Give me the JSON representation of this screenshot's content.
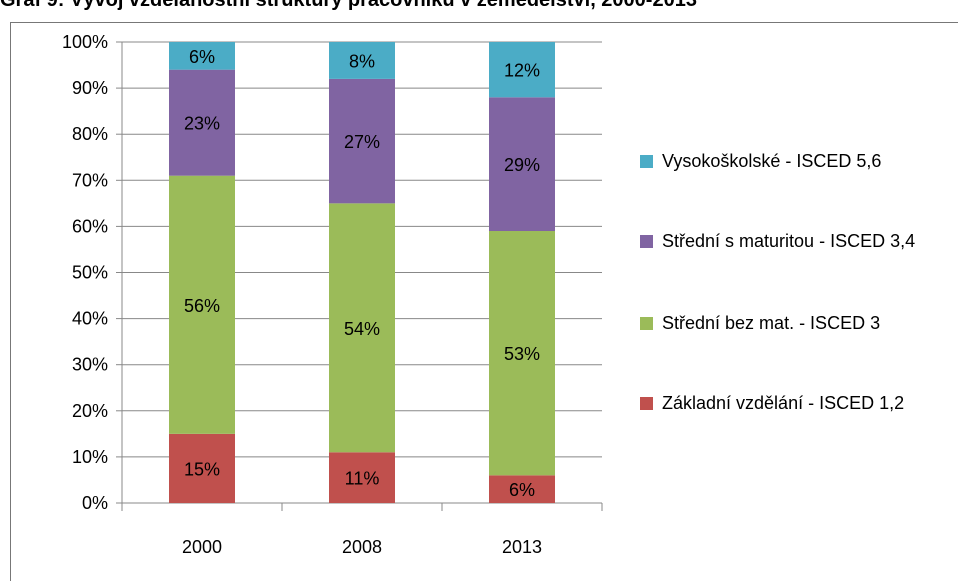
{
  "chart_data": {
    "type": "stacked_bar",
    "title": "Graf 9: Vývoj vzdělanostní struktury pracovníků v zemědělství, 2000-2013",
    "categories": [
      "2000",
      "2008",
      "2013"
    ],
    "series": [
      {
        "name": "Základní vzdělání - ISCED 1,2",
        "color": "#c0504d",
        "values": [
          15,
          11,
          6
        ],
        "value_labels": [
          "15%",
          "11%",
          "6%"
        ]
      },
      {
        "name": "Střední bez mat. - ISCED 3",
        "color": "#9bbb59",
        "values": [
          56,
          54,
          53
        ],
        "value_labels": [
          "56%",
          "54%",
          "53%"
        ]
      },
      {
        "name": "Střední s maturitou - ISCED 3,4",
        "color": "#8064a2",
        "values": [
          23,
          27,
          29
        ],
        "value_labels": [
          "23%",
          "27%",
          "29%"
        ]
      },
      {
        "name": "Vysokoškolské - ISCED 5,6",
        "color": "#4bacc6",
        "values": [
          6,
          8,
          12
        ],
        "value_labels": [
          "6%",
          "8%",
          "12%"
        ]
      }
    ],
    "ylim": [
      0,
      100
    ],
    "yticks": [
      {
        "value": 0,
        "label": "0%"
      },
      {
        "value": 10,
        "label": "10%"
      },
      {
        "value": 20,
        "label": "20%"
      },
      {
        "value": 30,
        "label": "30%"
      },
      {
        "value": 40,
        "label": "40%"
      },
      {
        "value": 50,
        "label": "50%"
      },
      {
        "value": 60,
        "label": "60%"
      },
      {
        "value": 70,
        "label": "70%"
      },
      {
        "value": 80,
        "label": "80%"
      },
      {
        "value": 90,
        "label": "90%"
      },
      {
        "value": 100,
        "label": "100%"
      }
    ],
    "grid": true,
    "legend": "right"
  }
}
